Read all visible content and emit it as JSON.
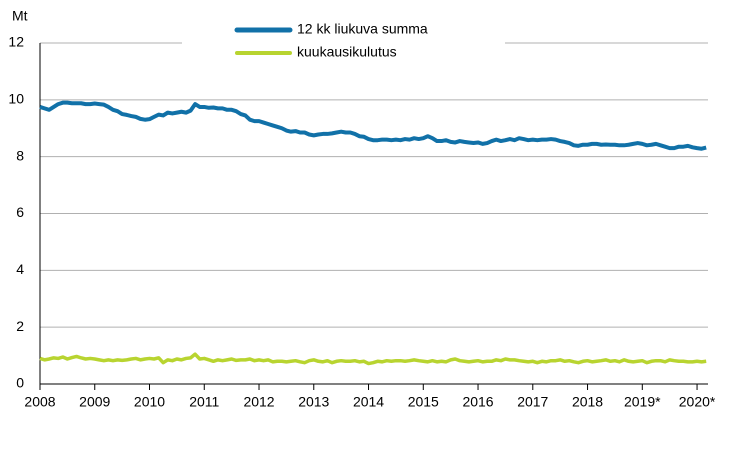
{
  "chart_data": {
    "type": "line",
    "y_label": "Mt",
    "x": [
      2008,
      2008.083,
      2008.167,
      2008.25,
      2008.333,
      2008.417,
      2008.5,
      2008.583,
      2008.667,
      2008.75,
      2008.833,
      2008.917,
      2009,
      2009.083,
      2009.167,
      2009.25,
      2009.333,
      2009.417,
      2009.5,
      2009.583,
      2009.667,
      2009.75,
      2009.833,
      2009.917,
      2010,
      2010.083,
      2010.167,
      2010.25,
      2010.333,
      2010.417,
      2010.5,
      2010.583,
      2010.667,
      2010.75,
      2010.833,
      2010.917,
      2011,
      2011.083,
      2011.167,
      2011.25,
      2011.333,
      2011.417,
      2011.5,
      2011.583,
      2011.667,
      2011.75,
      2011.833,
      2011.917,
      2012,
      2012.083,
      2012.167,
      2012.25,
      2012.333,
      2012.417,
      2012.5,
      2012.583,
      2012.667,
      2012.75,
      2012.833,
      2012.917,
      2013,
      2013.083,
      2013.167,
      2013.25,
      2013.333,
      2013.417,
      2013.5,
      2013.583,
      2013.667,
      2013.75,
      2013.833,
      2013.917,
      2014,
      2014.083,
      2014.167,
      2014.25,
      2014.333,
      2014.417,
      2014.5,
      2014.583,
      2014.667,
      2014.75,
      2014.833,
      2014.917,
      2015,
      2015.083,
      2015.167,
      2015.25,
      2015.333,
      2015.417,
      2015.5,
      2015.583,
      2015.667,
      2015.75,
      2015.833,
      2015.917,
      2016,
      2016.083,
      2016.167,
      2016.25,
      2016.333,
      2016.417,
      2016.5,
      2016.583,
      2016.667,
      2016.75,
      2016.833,
      2016.917,
      2017,
      2017.083,
      2017.167,
      2017.25,
      2017.333,
      2017.417,
      2017.5,
      2017.583,
      2017.667,
      2017.75,
      2017.833,
      2017.917,
      2018,
      2018.083,
      2018.167,
      2018.25,
      2018.333,
      2018.417,
      2018.5,
      2018.583,
      2018.667,
      2018.75,
      2018.833,
      2018.917,
      2019,
      2019.083,
      2019.167,
      2019.25,
      2019.333,
      2019.417,
      2019.5,
      2019.583,
      2019.667,
      2019.75,
      2019.833,
      2019.917,
      2020,
      2020.083,
      2020.167
    ],
    "series": [
      {
        "name": "12 kk liukuva summa",
        "color": "#1171a8",
        "values": [
          9.75,
          9.7,
          9.65,
          9.75,
          9.85,
          9.9,
          9.9,
          9.88,
          9.88,
          9.88,
          9.85,
          9.85,
          9.87,
          9.85,
          9.83,
          9.75,
          9.65,
          9.6,
          9.5,
          9.47,
          9.43,
          9.4,
          9.33,
          9.3,
          9.32,
          9.4,
          9.48,
          9.45,
          9.55,
          9.52,
          9.55,
          9.58,
          9.55,
          9.62,
          9.85,
          9.75,
          9.75,
          9.72,
          9.73,
          9.7,
          9.7,
          9.65,
          9.65,
          9.6,
          9.5,
          9.45,
          9.3,
          9.25,
          9.25,
          9.2,
          9.15,
          9.1,
          9.05,
          9.0,
          8.92,
          8.88,
          8.9,
          8.85,
          8.85,
          8.78,
          8.75,
          8.78,
          8.8,
          8.8,
          8.82,
          8.85,
          8.88,
          8.85,
          8.85,
          8.8,
          8.72,
          8.7,
          8.62,
          8.58,
          8.58,
          8.6,
          8.6,
          8.58,
          8.6,
          8.58,
          8.62,
          8.6,
          8.65,
          8.62,
          8.65,
          8.72,
          8.65,
          8.55,
          8.55,
          8.58,
          8.52,
          8.5,
          8.55,
          8.52,
          8.5,
          8.48,
          8.5,
          8.45,
          8.48,
          8.55,
          8.6,
          8.55,
          8.58,
          8.62,
          8.58,
          8.65,
          8.62,
          8.58,
          8.6,
          8.58,
          8.6,
          8.6,
          8.62,
          8.6,
          8.55,
          8.52,
          8.48,
          8.4,
          8.38,
          8.42,
          8.42,
          8.45,
          8.45,
          8.42,
          8.43,
          8.42,
          8.42,
          8.4,
          8.4,
          8.42,
          8.45,
          8.48,
          8.45,
          8.4,
          8.42,
          8.45,
          8.4,
          8.35,
          8.3,
          8.3,
          8.35,
          8.35,
          8.38,
          8.33,
          8.3,
          8.28,
          8.32
        ]
      },
      {
        "name": "kuukausikulutus",
        "color": "#b8d430",
        "values": [
          0.9,
          0.85,
          0.88,
          0.92,
          0.9,
          0.95,
          0.88,
          0.93,
          0.97,
          0.92,
          0.88,
          0.9,
          0.88,
          0.85,
          0.82,
          0.85,
          0.82,
          0.85,
          0.83,
          0.85,
          0.88,
          0.9,
          0.85,
          0.88,
          0.9,
          0.88,
          0.92,
          0.75,
          0.85,
          0.82,
          0.88,
          0.85,
          0.9,
          0.92,
          1.05,
          0.88,
          0.9,
          0.85,
          0.8,
          0.85,
          0.82,
          0.85,
          0.88,
          0.83,
          0.85,
          0.85,
          0.88,
          0.82,
          0.85,
          0.82,
          0.85,
          0.78,
          0.8,
          0.8,
          0.78,
          0.8,
          0.82,
          0.78,
          0.75,
          0.82,
          0.85,
          0.8,
          0.78,
          0.82,
          0.75,
          0.8,
          0.82,
          0.8,
          0.8,
          0.82,
          0.78,
          0.8,
          0.72,
          0.75,
          0.8,
          0.78,
          0.82,
          0.8,
          0.82,
          0.82,
          0.8,
          0.82,
          0.85,
          0.82,
          0.8,
          0.78,
          0.82,
          0.78,
          0.8,
          0.78,
          0.85,
          0.88,
          0.82,
          0.8,
          0.78,
          0.8,
          0.82,
          0.78,
          0.8,
          0.8,
          0.85,
          0.82,
          0.88,
          0.85,
          0.85,
          0.82,
          0.8,
          0.78,
          0.8,
          0.75,
          0.8,
          0.78,
          0.82,
          0.82,
          0.85,
          0.8,
          0.82,
          0.78,
          0.75,
          0.8,
          0.82,
          0.78,
          0.8,
          0.82,
          0.85,
          0.8,
          0.82,
          0.78,
          0.85,
          0.8,
          0.78,
          0.8,
          0.82,
          0.75,
          0.8,
          0.82,
          0.82,
          0.78,
          0.85,
          0.82,
          0.8,
          0.8,
          0.78,
          0.78,
          0.8,
          0.78,
          0.8
        ]
      }
    ],
    "xlim": [
      2008,
      2020.2
    ],
    "xticks": [
      2008,
      2009,
      2010,
      2011,
      2012,
      2013,
      2014,
      2015,
      2016,
      2017,
      2018,
      {
        "value": 2019,
        "label": "2019*"
      },
      {
        "value": 2020,
        "label": "2020*"
      }
    ],
    "ylim": [
      0,
      12
    ],
    "yticks": [
      0,
      2,
      4,
      6,
      8,
      10,
      12
    ],
    "grid": true
  }
}
